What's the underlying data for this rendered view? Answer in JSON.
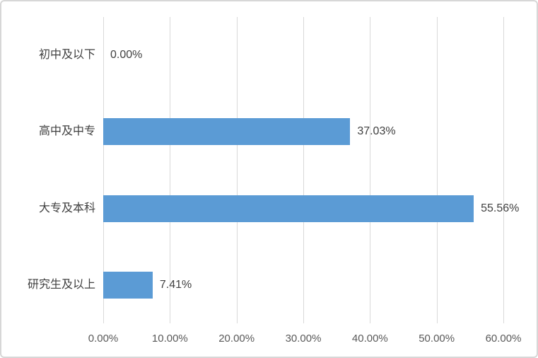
{
  "chart_data": {
    "type": "bar",
    "orientation": "horizontal",
    "title": "",
    "categories": [
      "初中及以下",
      "高中及中专",
      "大专及本科",
      "研究生及以上"
    ],
    "values": [
      0.0,
      37.03,
      55.56,
      7.41
    ],
    "data_labels": [
      "0.00%",
      "37.03%",
      "55.56%",
      "7.41%"
    ],
    "x_ticks": [
      {
        "value": 0,
        "label": "0.00%"
      },
      {
        "value": 10,
        "label": "10.00%"
      },
      {
        "value": 20,
        "label": "20.00%"
      },
      {
        "value": 30,
        "label": "30.00%"
      },
      {
        "value": 40,
        "label": "40.00%"
      },
      {
        "value": 50,
        "label": "50.00%"
      },
      {
        "value": 60,
        "label": "60.00%"
      }
    ],
    "xlim": [
      0,
      60
    ],
    "grid": true,
    "legend": false,
    "colors": {
      "bar": "#5B9BD5",
      "gridline": "#D9D9D9",
      "category_text": "#404040",
      "value_text": "#404040",
      "axis_text": "#595959",
      "frame_border": "#D7D7D7",
      "background": "#FFFFFF"
    }
  }
}
